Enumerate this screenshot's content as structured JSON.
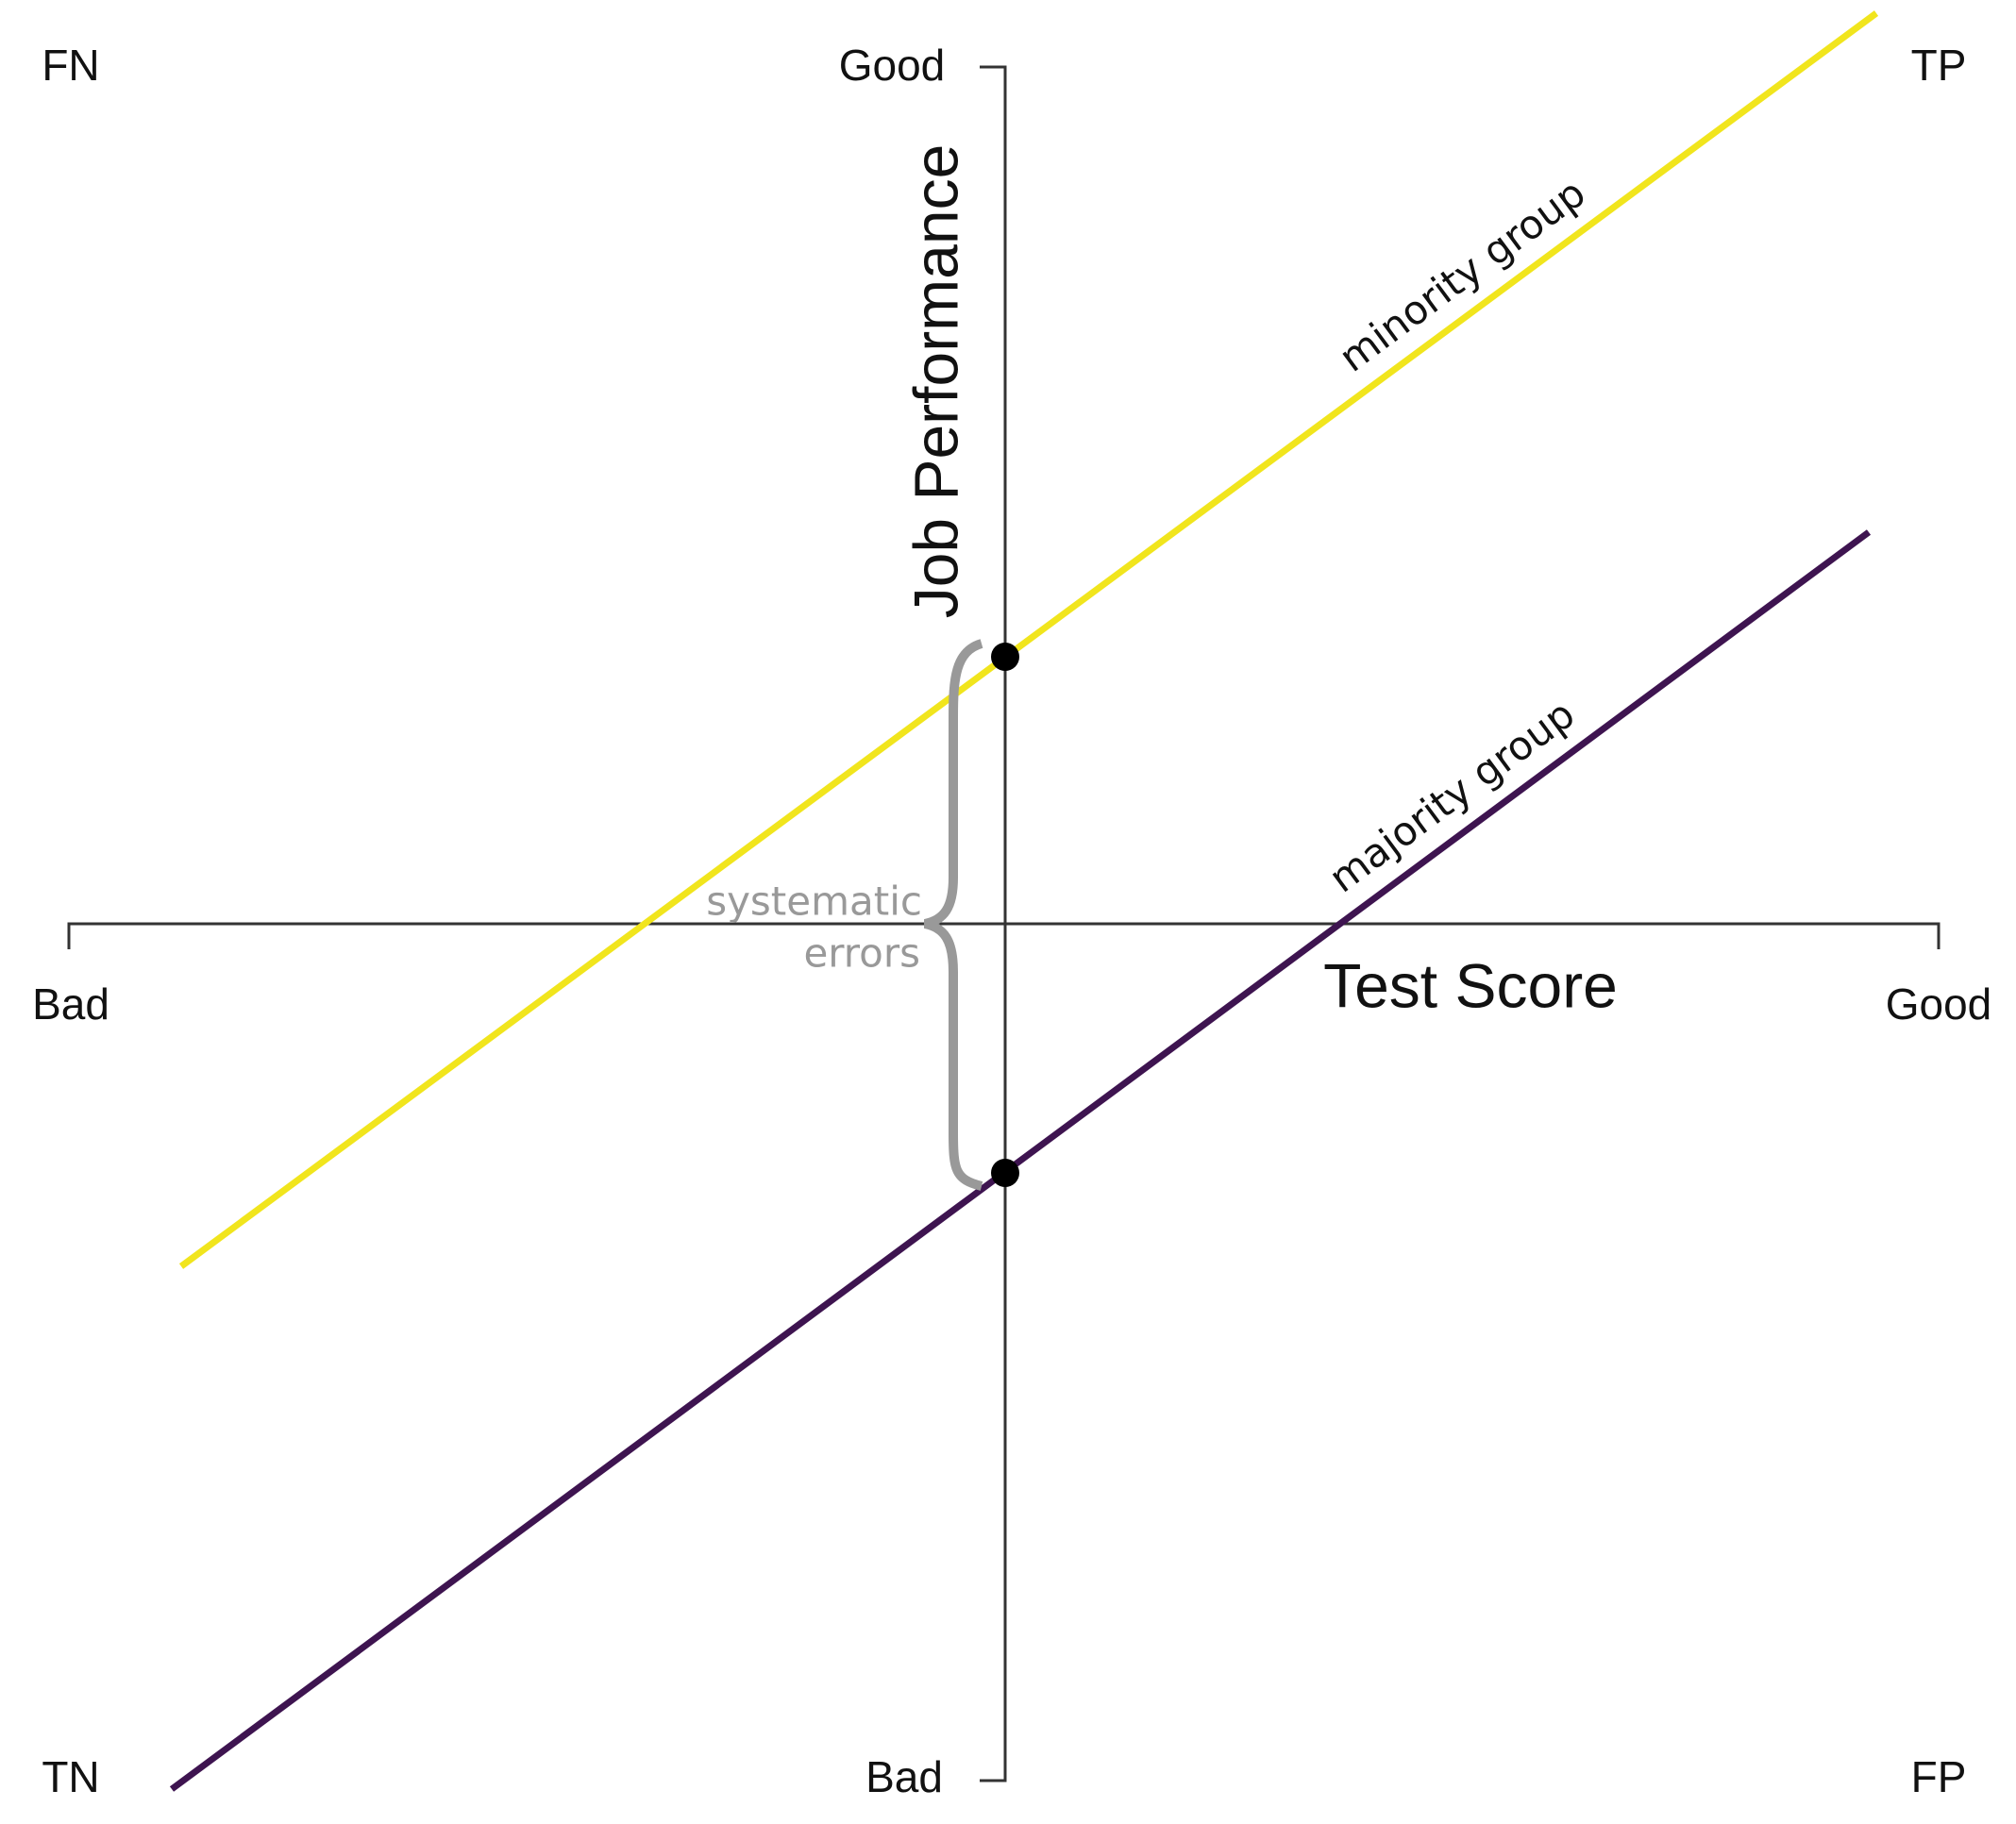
{
  "corners": {
    "fn": "FN",
    "tp": "TP",
    "tn": "TN",
    "fp": "FP"
  },
  "x_axis": {
    "title": "Test Score",
    "low": "Bad",
    "high": "Good"
  },
  "y_axis": {
    "title": "Job Performance",
    "low": "Bad",
    "high": "Good"
  },
  "lines": [
    {
      "label": "minority group"
    },
    {
      "label": "majority group"
    }
  ],
  "annotation": [
    "systematic",
    "errors"
  ]
}
